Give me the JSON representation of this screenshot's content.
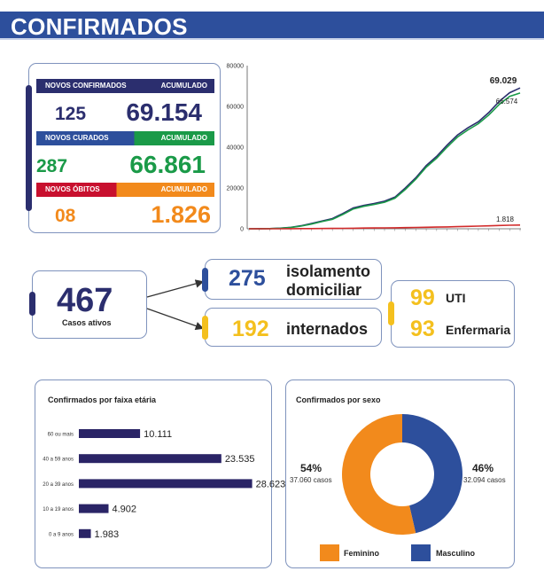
{
  "header": {
    "title": "CONFIRMADOS"
  },
  "stats": {
    "new_confirmed_label": "NOVOS CONFIRMADOS",
    "accum_label_1": "ACUMULADO",
    "new_confirmed": "125",
    "confirmed_total": "69.154",
    "new_recovered_label": "NOVOS CURADOS",
    "accum_label_2": "ACUMULADO",
    "new_recovered": "287",
    "recovered_total": "66.861",
    "new_deaths_label": "NOVOS ÓBITOS",
    "accum_label_3": "ACUMULADO",
    "new_deaths": "08",
    "deaths_total": "1.826"
  },
  "active": {
    "total": "467",
    "total_label": "Casos ativos",
    "home_isolation": "275",
    "home_isolation_label_1": "isolamento",
    "home_isolation_label_2": "domiciliar",
    "hospitalized": "192",
    "hospitalized_label": "internados",
    "icu": "99",
    "icu_label": "UTI",
    "ward": "93",
    "ward_label": "Enfermaria"
  },
  "colors": {
    "navy": "#2b2e6e",
    "blue": "#2d4f9c",
    "green": "#1a9a48",
    "orange": "#f28a1c",
    "red": "#d22b2b",
    "yellow": "#f4c01e",
    "bar": "#2a2466"
  },
  "chart_data": [
    {
      "type": "line",
      "title": "",
      "xlabel": "",
      "ylabel": "",
      "ylim": [
        0,
        80000
      ],
      "yticks": [
        "0",
        "20000",
        "40000",
        "60000",
        "80000"
      ],
      "grid": false,
      "series": [
        {
          "values": [
            0,
            30,
            100,
            300,
            700,
            1500,
            2600,
            3800,
            5000,
            7500,
            10200,
            11500,
            12400,
            13500,
            15500,
            20000,
            25000,
            31000,
            35500,
            41000,
            46000,
            49500,
            52500,
            57000,
            62500,
            66700,
            69029
          ]
        },
        {
          "values": [
            0,
            20,
            80,
            250,
            600,
            1300,
            2300,
            3500,
            4600,
            7000,
            9700,
            11000,
            11900,
            13000,
            15000,
            19300,
            24300,
            30200,
            34600,
            40000,
            45000,
            48500,
            51500,
            55800,
            61000,
            64900,
            66574
          ]
        },
        {
          "values": [
            0,
            5,
            10,
            20,
            40,
            70,
            100,
            140,
            180,
            230,
            280,
            330,
            380,
            430,
            480,
            560,
            640,
            730,
            820,
            920,
            1050,
            1180,
            1310,
            1450,
            1600,
            1720,
            1818
          ]
        }
      ],
      "end_labels": [
        "69.029",
        "66.574",
        "1.818"
      ]
    },
    {
      "type": "bar",
      "orientation": "horizontal",
      "title": "Confirmados por faixa etária",
      "categories": [
        "60 ou mais",
        "40 a 59 anos",
        "20 a 39 anos",
        "10 a 19 anos",
        "0 a 9 anos"
      ],
      "values": [
        10111,
        23535,
        28623,
        4902,
        1983
      ],
      "value_labels": [
        "10.111",
        "23.535",
        "28.623",
        "4.902",
        "1.983"
      ],
      "xlim": [
        0,
        30000
      ]
    },
    {
      "type": "pie",
      "title": "Confirmados por sexo",
      "categories": [
        "Feminino",
        "Masculino"
      ],
      "values": [
        37060,
        32094
      ],
      "percent_labels": [
        "54%",
        "46%"
      ],
      "count_labels": [
        "37.060 casos",
        "32.094 casos"
      ],
      "colors": [
        "#f28a1c",
        "#2d4f9c"
      ],
      "legend": "bottom"
    }
  ]
}
